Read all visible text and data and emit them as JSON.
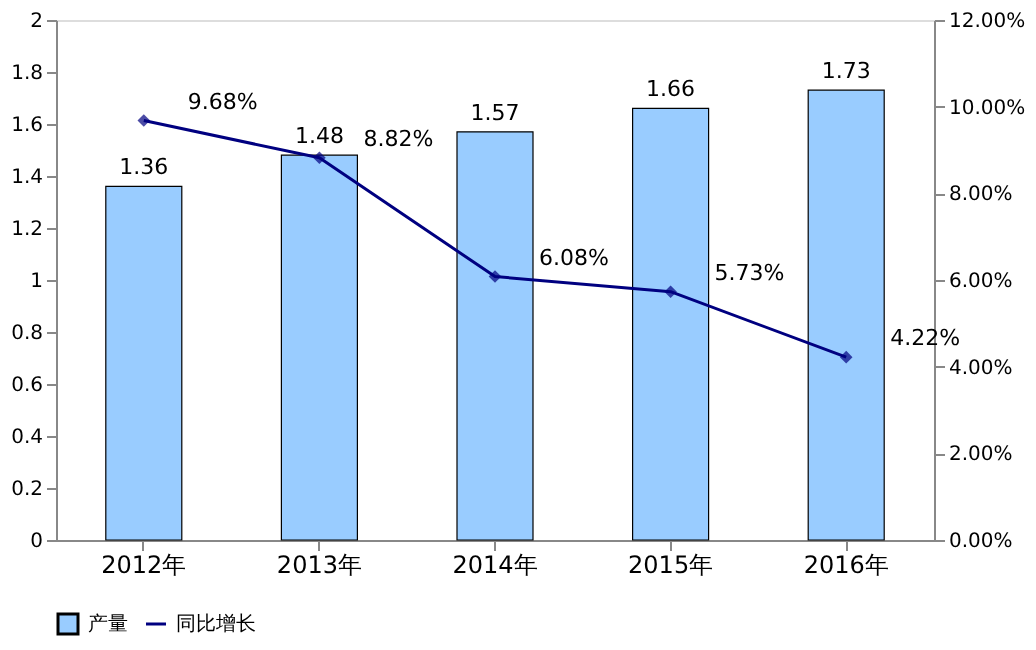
{
  "chart_data": {
    "type": "bar",
    "categories": [
      "2012年",
      "2013年",
      "2014年",
      "2015年",
      "2016年"
    ],
    "series": [
      {
        "name": "产量",
        "color": "#99ccff",
        "values": [
          1.36,
          1.48,
          1.57,
          1.66,
          1.73
        ],
        "value_labels": [
          "1.36",
          "1.48",
          "1.57",
          "1.66",
          "1.73"
        ]
      },
      {
        "name": "同比增长",
        "type": "line",
        "axis": "y2",
        "color": "#000080",
        "values": [
          9.68,
          8.82,
          6.08,
          5.73,
          4.22
        ],
        "value_labels": [
          "9.68%",
          "8.82%",
          "6.08%",
          "5.73%",
          "4.22%"
        ]
      }
    ],
    "ylim": [
      0,
      2
    ],
    "yticks": [
      0,
      0.2,
      0.4,
      0.6,
      0.8,
      1,
      1.2,
      1.4,
      1.6,
      1.8,
      2
    ],
    "y2lim": [
      0,
      12
    ],
    "y2ticks": [
      {
        "value": 0,
        "label": "0.00%"
      },
      {
        "value": 2,
        "label": "2.00%"
      },
      {
        "value": 4,
        "label": "4.00%"
      },
      {
        "value": 6,
        "label": "6.00%"
      },
      {
        "value": 8,
        "label": "8.00%"
      },
      {
        "value": 10,
        "label": "10.00%"
      },
      {
        "value": 12,
        "label": "12.00%"
      }
    ],
    "legend": "bottom",
    "marker": "diamond",
    "line_style": "solid",
    "grid": false
  }
}
